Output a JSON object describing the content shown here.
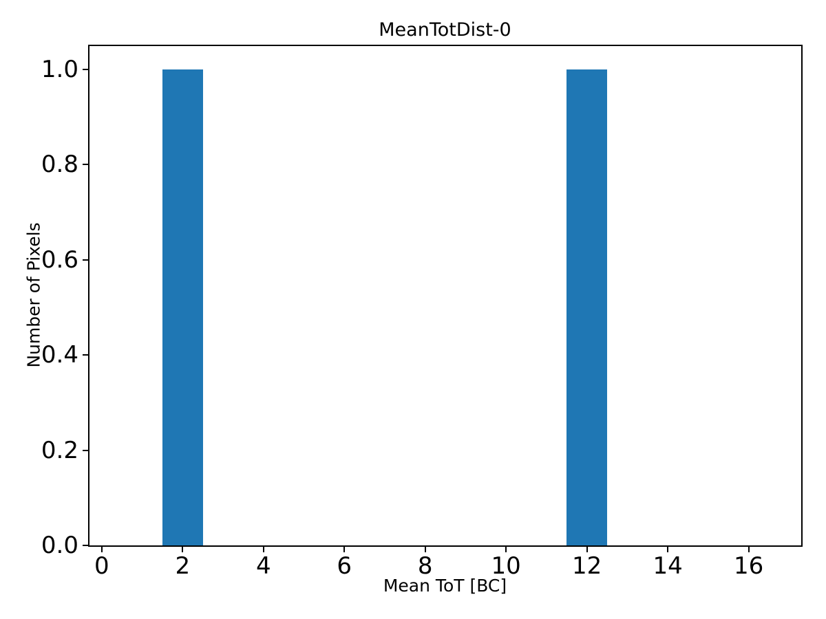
{
  "figure": {
    "title": "MeanTotDist-0",
    "xlabel": "Mean ToT [BC]",
    "ylabel": "Number of Pixels",
    "background_color": "#ffffff",
    "spine_color": "#000000",
    "text_color": "#000000"
  },
  "chart_data": {
    "type": "bar",
    "title": "MeanTotDist-0",
    "xlabel": "Mean ToT [BC]",
    "ylabel": "Number of Pixels",
    "bars": [
      {
        "x": 2,
        "height": 1.0
      },
      {
        "x": 12,
        "height": 1.0
      }
    ],
    "bar_width": 1.0,
    "bar_color": "#1f77b4",
    "xlim": [
      -0.32,
      17.3
    ],
    "ylim": [
      0,
      1.05
    ],
    "xticks": [
      0,
      2,
      4,
      6,
      8,
      10,
      12,
      14,
      16
    ],
    "xtick_labels": [
      "0",
      "2",
      "4",
      "6",
      "8",
      "10",
      "12",
      "14",
      "16"
    ],
    "yticks": [
      0.0,
      0.2,
      0.4,
      0.6,
      0.8,
      1.0
    ],
    "ytick_labels": [
      "0.0",
      "0.2",
      "0.4",
      "0.6",
      "0.8",
      "1.0"
    ],
    "grid": false,
    "legend": null
  }
}
